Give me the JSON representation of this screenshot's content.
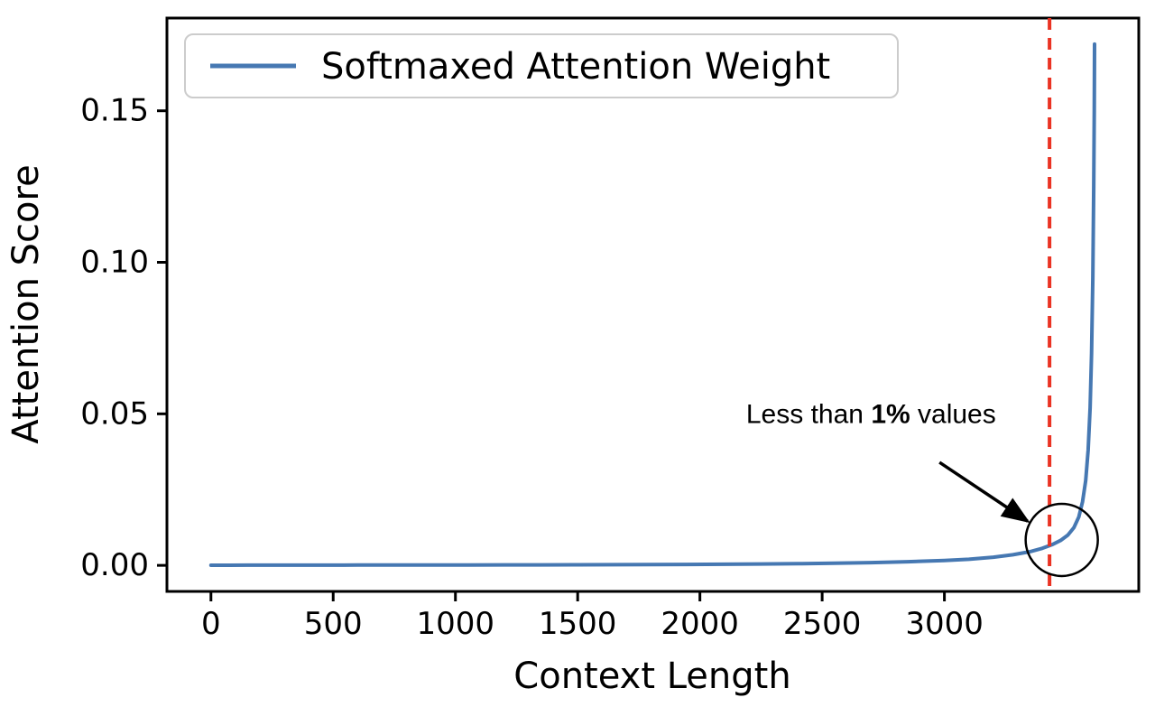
{
  "figure": {
    "background_color": "#ffffff",
    "axis_color": "#000000"
  },
  "chart_data": {
    "type": "line",
    "title": "",
    "xlabel": "Context Length",
    "ylabel": "Attention Score",
    "grid": false,
    "xlim": [
      -180,
      3795
    ],
    "ylim": [
      -0.0086,
      0.1806
    ],
    "xticks": {
      "values": [
        0,
        500,
        1000,
        1500,
        2000,
        2500,
        3000
      ],
      "labels": [
        "0",
        "500",
        "1000",
        "1500",
        "2000",
        "2500",
        "3000"
      ]
    },
    "yticks": {
      "values": [
        0.0,
        0.05,
        0.1,
        0.15
      ],
      "labels": [
        "0.00",
        "0.05",
        "0.10",
        "0.15"
      ]
    },
    "legend": {
      "position": "upper left",
      "entries": [
        {
          "label": "Softmaxed Attention Weight",
          "color": "#4678b2"
        }
      ]
    },
    "series": [
      {
        "name": "Softmaxed Attention Weight",
        "color": "#4678b2",
        "line_width": 4,
        "points": [
          [
            0,
            5e-05
          ],
          [
            150,
            6e-05
          ],
          [
            300,
            7e-05
          ],
          [
            450,
            8e-05
          ],
          [
            600,
            9e-05
          ],
          [
            750,
            0.0001
          ],
          [
            900,
            0.00011
          ],
          [
            1050,
            0.00013
          ],
          [
            1200,
            0.00015
          ],
          [
            1350,
            0.00017
          ],
          [
            1500,
            0.0002
          ],
          [
            1650,
            0.00023
          ],
          [
            1800,
            0.00027
          ],
          [
            1950,
            0.00032
          ],
          [
            2100,
            0.00038
          ],
          [
            2250,
            0.00046
          ],
          [
            2400,
            0.00056
          ],
          [
            2550,
            0.0007
          ],
          [
            2700,
            0.0009
          ],
          [
            2850,
            0.0012
          ],
          [
            3000,
            0.0016
          ],
          [
            3100,
            0.002
          ],
          [
            3200,
            0.0027
          ],
          [
            3280,
            0.0035
          ],
          [
            3350,
            0.0045
          ],
          [
            3400,
            0.0056
          ],
          [
            3440,
            0.0068
          ],
          [
            3475,
            0.0082
          ],
          [
            3505,
            0.01
          ],
          [
            3530,
            0.0125
          ],
          [
            3550,
            0.016
          ],
          [
            3565,
            0.021
          ],
          [
            3578,
            0.028
          ],
          [
            3588,
            0.038
          ],
          [
            3596,
            0.052
          ],
          [
            3602,
            0.07
          ],
          [
            3607,
            0.095
          ],
          [
            3611,
            0.125
          ],
          [
            3613,
            0.15
          ],
          [
            3614,
            0.172
          ]
        ]
      }
    ],
    "vline": {
      "x": 3430,
      "color": "#ea3323",
      "style": "dashed",
      "width": 4
    },
    "annotation": {
      "text_prefix": "Less than ",
      "text_bold": "1%",
      "text_suffix": " values",
      "color": "#000000",
      "text_xy": [
        2700,
        0.047
      ],
      "arrow_start": [
        2980,
        0.034
      ],
      "arrow_end": [
        3340,
        0.0146
      ],
      "circle_center": [
        3480,
        0.0084
      ],
      "circle_radius_px": 40
    }
  }
}
